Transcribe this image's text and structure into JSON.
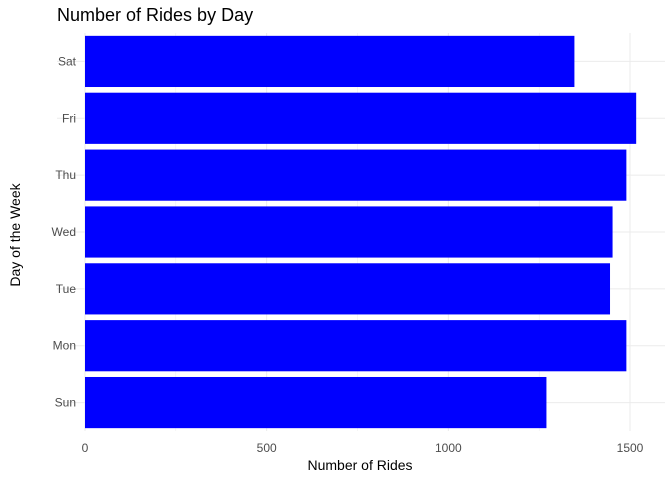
{
  "chart_data": {
    "type": "bar",
    "orientation": "horizontal",
    "title": "Number of Rides by Day",
    "xlabel": "Number of Rides",
    "ylabel": "Day of the Week",
    "categories": [
      "Sun",
      "Mon",
      "Tue",
      "Wed",
      "Thu",
      "Fri",
      "Sat"
    ],
    "values": [
      1270,
      1490,
      1445,
      1452,
      1490,
      1517,
      1347
    ],
    "xlim": [
      0,
      1530
    ],
    "xticks": [
      0,
      500,
      1000,
      1500
    ],
    "grid": true,
    "bar_color": "#0000FF",
    "grid_color": "#EBEBEB"
  }
}
